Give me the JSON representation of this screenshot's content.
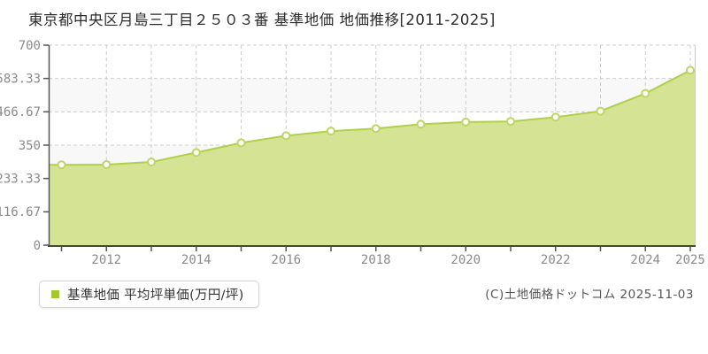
{
  "title": "東京都中央区月島三丁目２５０３番 基準地価 地価推移[2011-2025]",
  "legend": {
    "label": "基準地価 平均坪単価(万円/坪)",
    "marker_color": "#a3c925"
  },
  "copyright": "(C)土地価格ドットコム 2025-11-03",
  "chart_data": {
    "type": "area",
    "title": "東京都中央区月島三丁目２５０３番 基準地価 地価推移[2011-2025]",
    "series_name": "基準地価 平均坪単価(万円/坪)",
    "x": [
      2011,
      2012,
      2013,
      2014,
      2015,
      2016,
      2017,
      2018,
      2019,
      2020,
      2021,
      2022,
      2023,
      2024,
      2025
    ],
    "values": [
      281,
      282,
      291,
      324,
      358,
      383,
      399,
      408,
      423,
      431,
      433,
      448,
      469,
      531,
      612
    ],
    "ylabel": "平均坪単価(万円/坪)",
    "xlabel": "",
    "ylim": [
      0,
      700
    ],
    "y_ticks": [
      0,
      116.67,
      233.33,
      350,
      466.67,
      583.33,
      700
    ],
    "y_tick_labels": [
      "0",
      "116.67",
      "233.33",
      "350",
      "466.67",
      "583.33",
      "700"
    ],
    "x_tick_labeled_years": [
      2012,
      2014,
      2016,
      2018,
      2020,
      2022,
      2024,
      2025
    ],
    "grid": "dashed, horizontal and vertical, alternating horizontal shaded bands",
    "legend_position": "bottom-left",
    "colors": {
      "area_fill": "#d5e494",
      "line": "#afd04a",
      "marker_fill": "#ffffff",
      "marker_stroke": "#bdd563",
      "grid_line": "#cccccc",
      "band_shade": "#f8f8f8",
      "axis_line": "#555555",
      "tick_text": "#8a8a8a",
      "right_border": "#cccccc"
    }
  }
}
